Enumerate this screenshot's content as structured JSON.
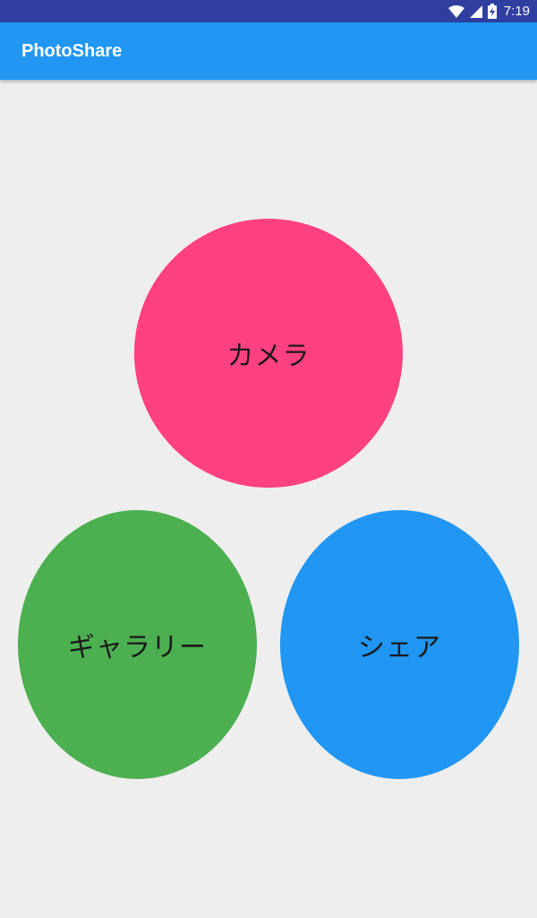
{
  "status_bar": {
    "time": "7:19",
    "icons": [
      "wifi-icon",
      "signal-icon",
      "battery-charging-icon"
    ]
  },
  "app_bar": {
    "title": "PhotoShare"
  },
  "buttons": {
    "camera": {
      "label": "カメラ",
      "color": "#ff4081"
    },
    "gallery": {
      "label": "ギャラリー",
      "color": "#4caf50"
    },
    "share": {
      "label": "シェア",
      "color": "#2196f3"
    }
  },
  "colors": {
    "status_bar": "#303f9f",
    "app_bar": "#2196f3",
    "background": "#eeeeee"
  }
}
